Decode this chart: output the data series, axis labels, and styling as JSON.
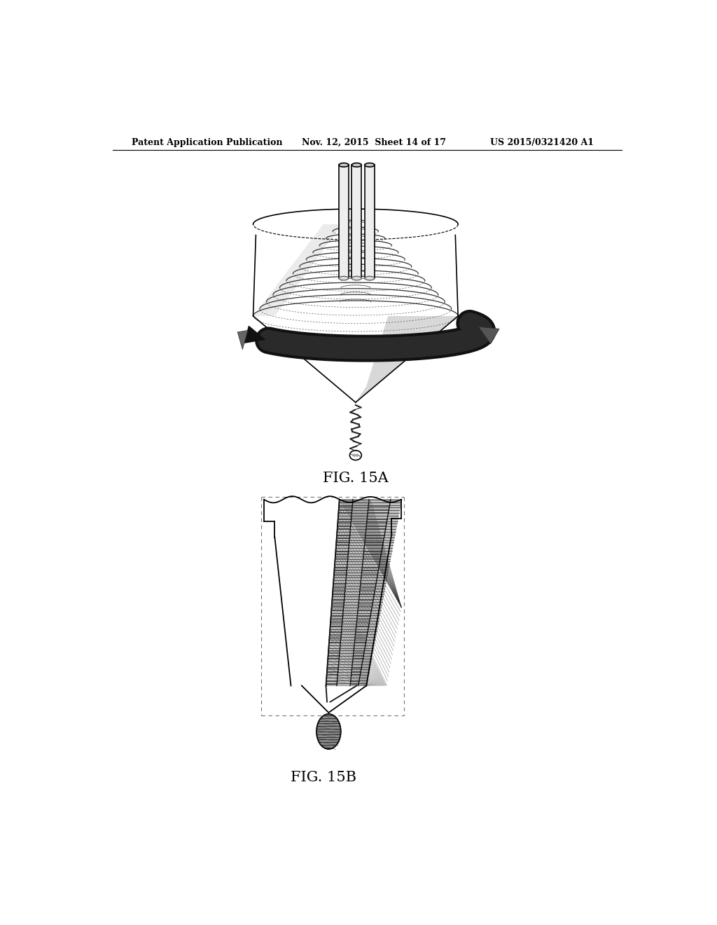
{
  "header_left": "Patent Application Publication",
  "header_middle": "Nov. 12, 2015  Sheet 14 of 17",
  "header_right": "US 2015/0321420 A1",
  "fig15a_label": "FIG. 15A",
  "fig15b_label": "FIG. 15B",
  "bg_color": "#ffffff",
  "line_color": "#000000"
}
